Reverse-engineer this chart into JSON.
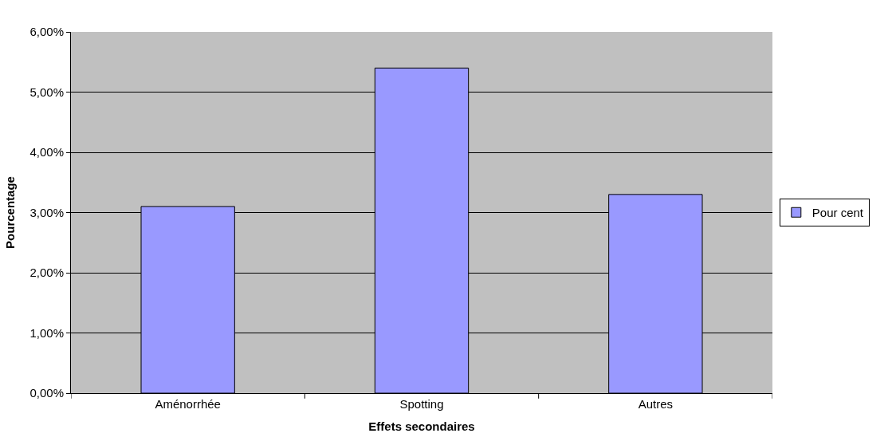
{
  "chart_data": {
    "type": "bar",
    "xlabel": "Effets secondaires",
    "ylabel": "Pourcentage",
    "categories": [
      "Aménorrhée",
      "Spotting",
      "Autres"
    ],
    "series": [
      {
        "name": "Pour cent",
        "color": "#9999ff",
        "values": [
          3.1,
          5.4,
          3.3
        ]
      }
    ],
    "ylim": [
      0,
      6
    ],
    "yticks": [
      {
        "value": 0,
        "label": "0,00%"
      },
      {
        "value": 1,
        "label": "1,00%"
      },
      {
        "value": 2,
        "label": "2,00%"
      },
      {
        "value": 3,
        "label": "3,00%"
      },
      {
        "value": 4,
        "label": "4,00%"
      },
      {
        "value": 5,
        "label": "5,00%"
      },
      {
        "value": 6,
        "label": "6,00%"
      }
    ],
    "grid": "y",
    "legend": "right"
  }
}
